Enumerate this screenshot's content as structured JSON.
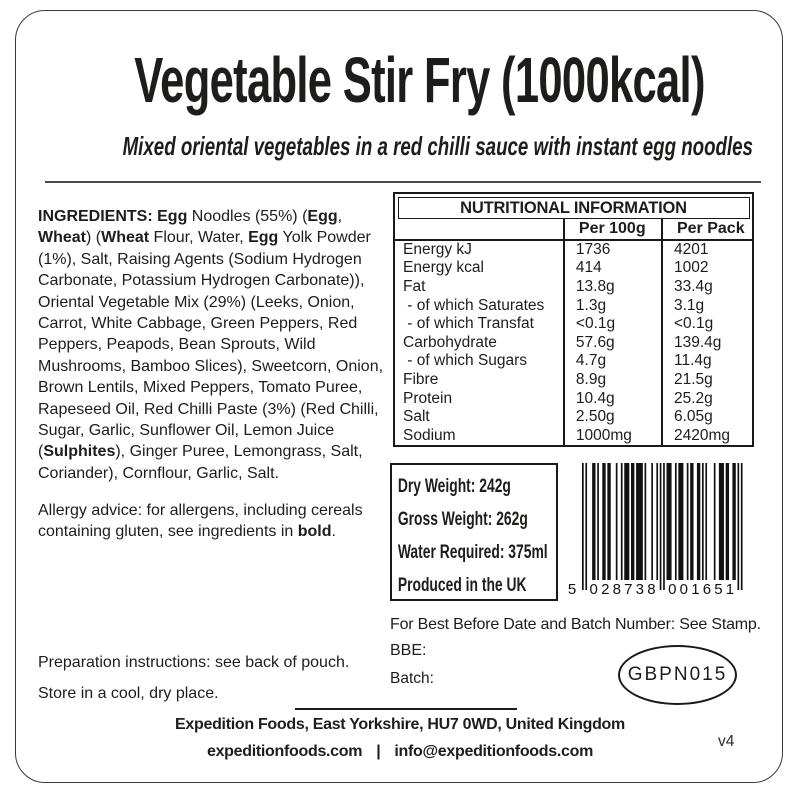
{
  "header": {
    "title": "Vegetable Stir Fry (1000kcal)",
    "subtitle": "Mixed oriental vegetables in a red chilli sauce with instant egg noodles"
  },
  "ingredients": {
    "segments": [
      {
        "t": "INGREDIENTS: ",
        "b": true
      },
      {
        "t": "Egg",
        "b": true
      },
      {
        "t": " Noodles (55%) (",
        "b": false
      },
      {
        "t": "Egg",
        "b": true
      },
      {
        "t": ", ",
        "b": false
      },
      {
        "t": "Wheat",
        "b": true
      },
      {
        "t": ") (",
        "b": false
      },
      {
        "t": "Wheat",
        "b": true
      },
      {
        "t": " Flour, Water, ",
        "b": false
      },
      {
        "t": "Egg",
        "b": true
      },
      {
        "t": " Yolk Powder (1%), Salt, Raising Agents (Sodium Hydrogen Carbonate, Potassium Hydrogen Carbonate)), Oriental Vegetable Mix (29%) (Leeks, Onion, Carrot, White Cabbage, Green Peppers, Red Peppers, Peapods, Bean Sprouts, Wild Mushrooms, Bamboo Slices), Sweetcorn, Onion, Brown Lentils, Mixed Peppers, Tomato Puree, Rapeseed Oil, Red Chilli Paste (3%) (Red Chilli, Sugar, Garlic, Sunflower Oil, Lemon Juice (",
        "b": false
      },
      {
        "t": "Sulphites",
        "b": true
      },
      {
        "t": "), Ginger Puree, Lemongrass, Salt, Coriander), Cornflour, Garlic, Salt.",
        "b": false
      }
    ],
    "allergy_segments": [
      {
        "t": "Allergy advice: for allergens, including cereals containing gluten, see ingredients in ",
        "b": false
      },
      {
        "t": "bold",
        "b": true
      },
      {
        "t": ".",
        "b": false
      }
    ]
  },
  "preparation": {
    "instructions": "Preparation instructions: see back of pouch.",
    "storage": "Store in a cool, dry place."
  },
  "nutrition": {
    "title": "NUTRITIONAL INFORMATION",
    "columns": [
      "Per 100g",
      "Per Pack"
    ],
    "rows": [
      {
        "label": "Energy kJ",
        "per_100g": "1736",
        "per_pack": "4201"
      },
      {
        "label": "Energy kcal",
        "per_100g": "414",
        "per_pack": "1002"
      },
      {
        "label": "Fat",
        "per_100g": "13.8g",
        "per_pack": "33.4g"
      },
      {
        "label": " - of which Saturates",
        "per_100g": "1.3g",
        "per_pack": "3.1g"
      },
      {
        "label": " - of which Transfat",
        "per_100g": "<0.1g",
        "per_pack": "<0.1g"
      },
      {
        "label": "Carbohydrate",
        "per_100g": "57.6g",
        "per_pack": "139.4g"
      },
      {
        "label": " - of which Sugars",
        "per_100g": "4.7g",
        "per_pack": "11.4g"
      },
      {
        "label": "Fibre",
        "per_100g": "8.9g",
        "per_pack": "21.5g"
      },
      {
        "label": "Protein",
        "per_100g": "10.4g",
        "per_pack": "25.2g"
      },
      {
        "label": "Salt",
        "per_100g": "2.50g",
        "per_pack": "6.05g"
      },
      {
        "label": "Sodium",
        "per_100g": "1000mg",
        "per_pack": "2420mg"
      }
    ]
  },
  "pack_info": {
    "lines": [
      "Dry Weight: 242g",
      "Gross Weight: 262g",
      "Water Required: 375ml",
      "Produced in the UK"
    ]
  },
  "barcode": {
    "digits": "5028738001651"
  },
  "batch": {
    "note": "For Best Before Date and Batch Number: See Stamp.",
    "bbe_label": "BBE:",
    "batch_label": "Batch:",
    "stamp_code": "GBPN015"
  },
  "footer": {
    "address": "Expedition Foods, East Yorkshire, HU7 0WD, United Kingdom",
    "website": "expeditionfoods.com",
    "separator": "|",
    "email": "info@expeditionfoods.com",
    "version": "v4"
  },
  "colors": {
    "ink": "#1d1d1b",
    "background": "#ffffff"
  }
}
